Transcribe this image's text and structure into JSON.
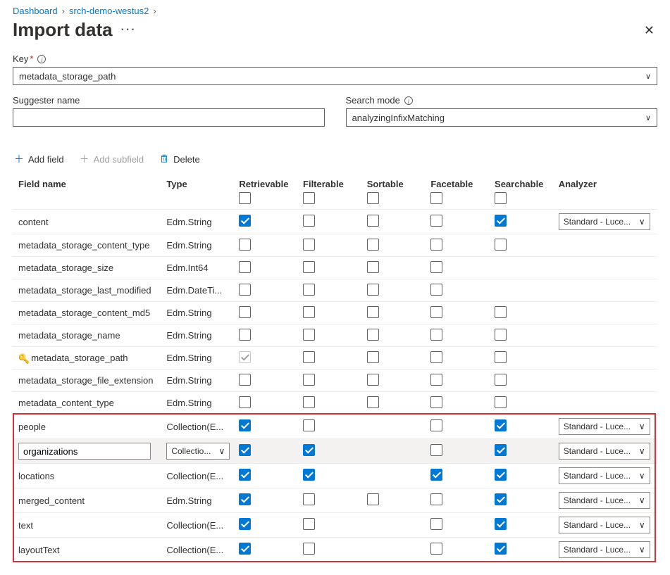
{
  "breadcrumbs": [
    "Dashboard",
    "srch-demo-westus2"
  ],
  "page_title": "Import data",
  "close_glyph": "✕",
  "labels": {
    "key": "Key",
    "suggester": "Suggester name",
    "search_mode": "Search mode"
  },
  "key_value": "metadata_storage_path",
  "suggester_value": "",
  "search_mode_value": "analyzingInfixMatching",
  "toolbar": {
    "add_field": "Add field",
    "add_subfield": "Add subfield",
    "delete": "Delete"
  },
  "columns": {
    "field_name": "Field name",
    "type": "Type",
    "retrievable": "Retrievable",
    "filterable": "Filterable",
    "sortable": "Sortable",
    "facetable": "Facetable",
    "searchable": "Searchable",
    "analyzer": "Analyzer"
  },
  "header_checks": {
    "retrievable": false,
    "filterable": false,
    "sortable": false,
    "facetable": false,
    "searchable": false
  },
  "analyzer_default": "Standard - Luce...",
  "rows": [
    {
      "name": "content",
      "type": "Edm.String",
      "retrievable": true,
      "filterable": false,
      "sortable": false,
      "facetable": false,
      "searchable": true,
      "analyzer": true
    },
    {
      "name": "metadata_storage_content_type",
      "type": "Edm.String",
      "retrievable": false,
      "filterable": false,
      "sortable": false,
      "facetable": false,
      "searchable": false
    },
    {
      "name": "metadata_storage_size",
      "type": "Edm.Int64",
      "retrievable": false,
      "filterable": false,
      "sortable": false,
      "facetable": false,
      "searchable": null
    },
    {
      "name": "metadata_storage_last_modified",
      "type": "Edm.DateTi...",
      "retrievable": false,
      "filterable": false,
      "sortable": false,
      "facetable": false,
      "searchable": null
    },
    {
      "name": "metadata_storage_content_md5",
      "type": "Edm.String",
      "retrievable": false,
      "filterable": false,
      "sortable": false,
      "facetable": false,
      "searchable": false
    },
    {
      "name": "metadata_storage_name",
      "type": "Edm.String",
      "retrievable": false,
      "filterable": false,
      "sortable": false,
      "facetable": false,
      "searchable": false
    },
    {
      "name": "metadata_storage_path",
      "type": "Edm.String",
      "key": true,
      "retrievable": "disabled-checked",
      "filterable": false,
      "sortable": false,
      "facetable": false,
      "searchable": false
    },
    {
      "name": "metadata_storage_file_extension",
      "type": "Edm.String",
      "retrievable": false,
      "filterable": false,
      "sortable": false,
      "facetable": false,
      "searchable": false
    },
    {
      "name": "metadata_content_type",
      "type": "Edm.String",
      "retrievable": false,
      "filterable": false,
      "sortable": false,
      "facetable": false,
      "searchable": false
    },
    {
      "name": "people",
      "type": "Collection(E...",
      "retrievable": true,
      "filterable": false,
      "sortable": null,
      "facetable": false,
      "searchable": true,
      "analyzer": true,
      "hl": true
    },
    {
      "name": "organizations",
      "type": "Collectio...",
      "type_select": true,
      "name_input": true,
      "selected": true,
      "retrievable": true,
      "filterable": true,
      "sortable": null,
      "facetable": false,
      "searchable": true,
      "analyzer": true,
      "hl": true
    },
    {
      "name": "locations",
      "type": "Collection(E...",
      "retrievable": true,
      "filterable": true,
      "sortable": null,
      "facetable": true,
      "searchable": true,
      "analyzer": true,
      "hl": true
    },
    {
      "name": "merged_content",
      "type": "Edm.String",
      "retrievable": true,
      "filterable": false,
      "sortable": false,
      "facetable": false,
      "searchable": true,
      "analyzer": true,
      "hl": true
    },
    {
      "name": "text",
      "type": "Collection(E...",
      "retrievable": true,
      "filterable": false,
      "sortable": null,
      "facetable": false,
      "searchable": true,
      "analyzer": true,
      "hl": true
    },
    {
      "name": "layoutText",
      "type": "Collection(E...",
      "retrievable": true,
      "filterable": false,
      "sortable": null,
      "facetable": false,
      "searchable": true,
      "analyzer": true,
      "hl": true
    }
  ]
}
